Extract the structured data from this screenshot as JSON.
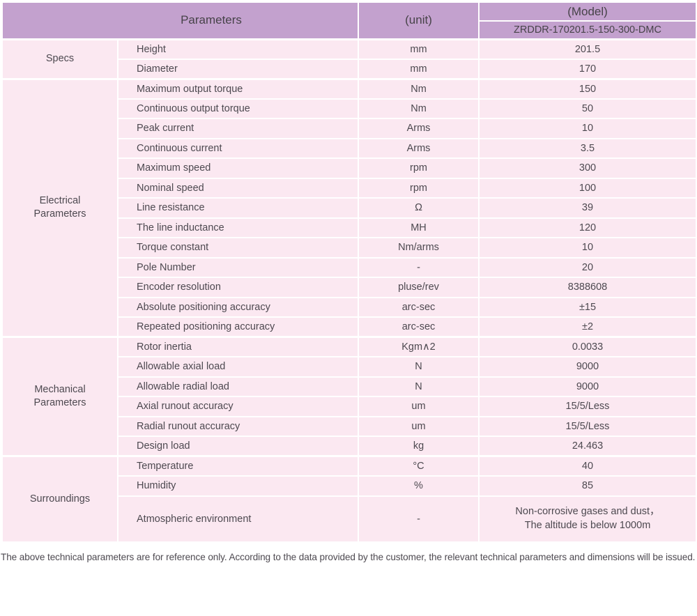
{
  "table": {
    "header": {
      "parameters": "Parameters",
      "unit": "(unit)",
      "model": "(Model)",
      "model_number": "ZRDDR-170201.5-150-300-DMC"
    },
    "sections": [
      {
        "group": "Specs",
        "rows": [
          {
            "name": "Height",
            "unit": "mm",
            "value": "201.5"
          },
          {
            "name": "Diameter",
            "unit": "mm",
            "value": "170"
          }
        ]
      },
      {
        "group": "Electrical\nParameters",
        "rows": [
          {
            "name": "Maximum output torque",
            "unit": "Nm",
            "value": "150"
          },
          {
            "name": "Continuous output torque",
            "unit": "Nm",
            "value": "50"
          },
          {
            "name": "Peak current",
            "unit": "Arms",
            "value": "10"
          },
          {
            "name": "Continuous current",
            "unit": "Arms",
            "value": "3.5"
          },
          {
            "name": "Maximum speed",
            "unit": "rpm",
            "value": "300"
          },
          {
            "name": "Nominal speed",
            "unit": "rpm",
            "value": "100"
          },
          {
            "name": "Line resistance",
            "unit": "Ω",
            "value": "39"
          },
          {
            "name": "The line inductance",
            "unit": "MH",
            "value": "120"
          },
          {
            "name": "Torque constant",
            "unit": "Nm/arms",
            "value": "10"
          },
          {
            "name": "Pole Number",
            "unit": "-",
            "value": "20"
          },
          {
            "name": "Encoder resolution",
            "unit": "pluse/rev",
            "value": "8388608"
          },
          {
            "name": "Absolute positioning accuracy",
            "unit": "arc-sec",
            "value": "±15"
          },
          {
            "name": "Repeated positioning accuracy",
            "unit": "arc-sec",
            "value": "±2"
          }
        ]
      },
      {
        "group": "Mechanical\nParameters",
        "rows": [
          {
            "name": "Rotor inertia",
            "unit": "Kgm∧2",
            "value": "0.0033"
          },
          {
            "name": "Allowable axial load",
            "unit": "N",
            "value": "9000"
          },
          {
            "name": "Allowable radial load",
            "unit": "N",
            "value": "9000"
          },
          {
            "name": "Axial runout accuracy",
            "unit": "um",
            "value": "15/5/Less"
          },
          {
            "name": "Radial runout accuracy",
            "unit": "um",
            "value": "15/5/Less"
          },
          {
            "name": "Design load",
            "unit": "kg",
            "value": "24.463"
          }
        ]
      },
      {
        "group": "Surroundings",
        "rows": [
          {
            "name": "Temperature",
            "unit": "°C",
            "value": "40"
          },
          {
            "name": "Humidity",
            "unit": "%",
            "value": "85"
          },
          {
            "name": "Atmospheric environment",
            "unit": "-",
            "value": [
              "Non-corrosive gases and dust，",
              "The altitude is below 1000m"
            ],
            "tall": true
          }
        ]
      }
    ]
  },
  "footer": {
    "note": "The above technical parameters are for reference only. According to the data provided by the customer, the relevant technical parameters and dimensions will be issued."
  },
  "colors": {
    "header_bg": "#c3a1ce",
    "row_bg": "#fbe8f1",
    "grid": "#ffffff",
    "text": "#4d4950"
  }
}
